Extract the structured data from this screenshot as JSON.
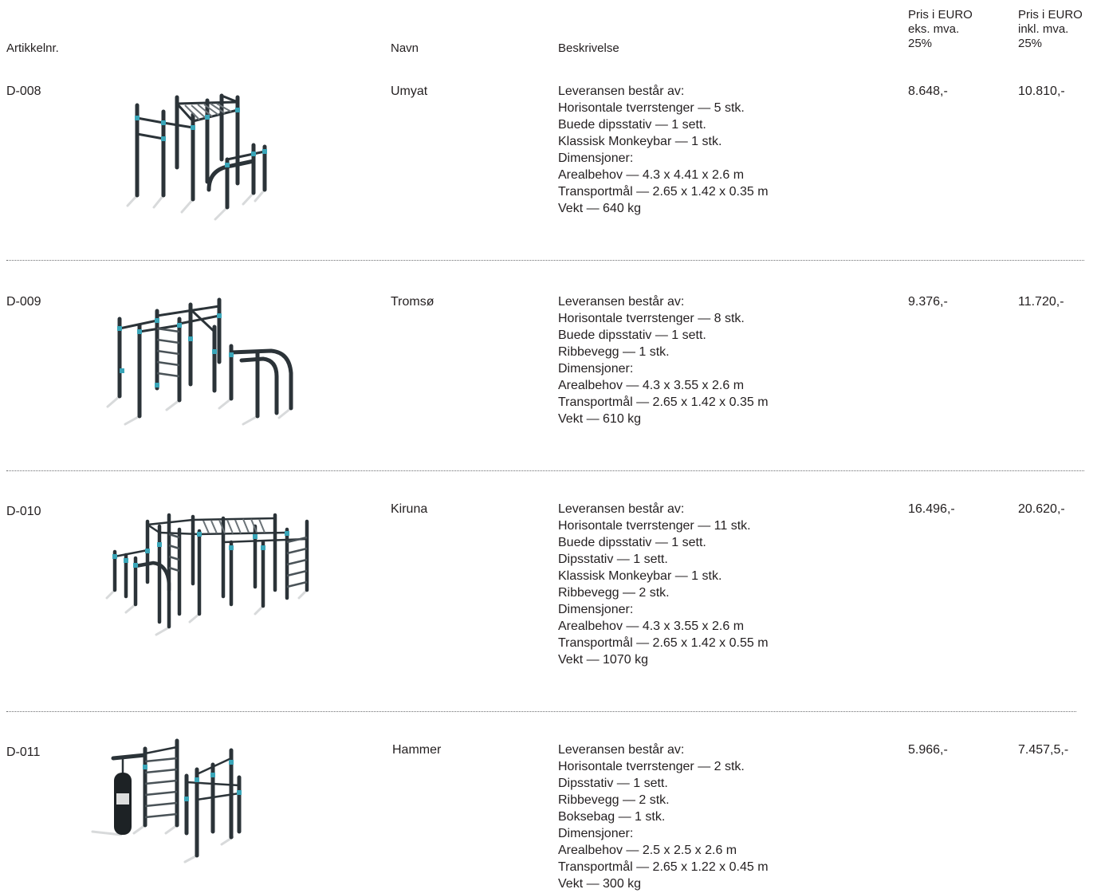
{
  "header": {
    "artikkelnr": "Artikkelnr.",
    "navn": "Navn",
    "beskrivelse": "Beskrivelse",
    "pris_eks": [
      "Pris i EURO",
      "eks. mva.",
      "25%"
    ],
    "pris_inkl": [
      "Pris i EURO",
      "inkl. mva.",
      "25%"
    ]
  },
  "products": [
    {
      "code": "D-008",
      "name": "Umyat",
      "image_icon": "umyat-workout-station",
      "description": [
        "Leveransen består av:",
        "Horisontale tverrstenger — 5 stk.",
        "Buede dipsstativ — 1 sett.",
        "Klassisk Monkeybar — 1 stk.",
        "Dimensjoner:",
        "Arealbehov — 4.3 x 4.41 x 2.6 m",
        "Transportmål — 2.65 x 1.42 x 0.35 m",
        "Vekt — 640 kg"
      ],
      "price_ex": "8.648,-",
      "price_inc": "10.810,-"
    },
    {
      "code": "D-009",
      "name": "Tromsø",
      "image_icon": "tromso-workout-station",
      "description": [
        "Leveransen består av:",
        "Horisontale tverrstenger — 8 stk.",
        "Buede dipsstativ — 1 sett.",
        "Ribbevegg — 1 stk.",
        "Dimensjoner:",
        "Arealbehov — 4.3 x 3.55 x 2.6 m",
        "Transportmål — 2.65 x 1.42 x 0.35 m",
        "Vekt — 610 kg"
      ],
      "price_ex": "9.376,-",
      "price_inc": "11.720,-"
    },
    {
      "code": "D-010",
      "name": "Kiruna",
      "image_icon": "kiruna-workout-station",
      "description": [
        "Leveransen består av:",
        "Horisontale tverrstenger — 11 stk.",
        "Buede dipsstativ — 1 sett.",
        "Dipsstativ — 1 sett.",
        "Klassisk Monkeybar — 1 stk.",
        "Ribbevegg — 2 stk.",
        "Dimensjoner:",
        "Arealbehov — 4.3 x 3.55 x 2.6 m",
        "Transportmål — 2.65 x 1.42 x 0.55 m",
        "Vekt — 1070 kg"
      ],
      "price_ex": "16.496,-",
      "price_inc": "20.620,-"
    },
    {
      "code": "D-011",
      "name": "Hammer",
      "image_icon": "hammer-workout-station",
      "description": [
        "Leveransen består av:",
        "Horisontale tverrstenger — 2 stk.",
        "Dipsstativ — 1 sett.",
        "Ribbevegg — 2 stk.",
        "Boksebag — 1 stk.",
        "Dimensjoner:",
        "Arealbehov — 2.5 x 2.5 x 2.6 m",
        "Transportmål — 2.65 x 1.22 x 0.45 m",
        "Vekt — 300 kg"
      ],
      "price_ex": "5.966,-",
      "price_inc": "7.457,5,-"
    }
  ],
  "colors": {
    "text": "#231f20",
    "pole": "#2b3338",
    "clamp": "#3aa6b9",
    "shadow": "#d4d6d8",
    "separator": "#6d6e71"
  }
}
